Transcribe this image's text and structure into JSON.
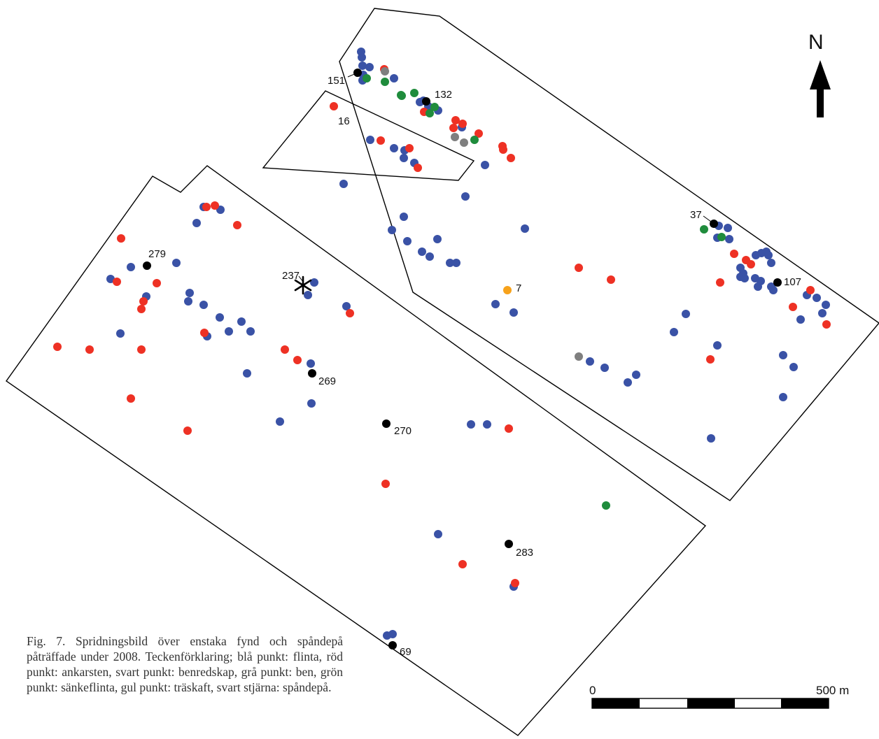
{
  "colors": {
    "flinta": "#3a52a6",
    "ankarsten": "#ee3124",
    "benredskap": "#000000",
    "ben": "#7f7f7f",
    "sankeflinta": "#1f8c3c",
    "traskaft": "#f7a21b"
  },
  "north_label": "N",
  "scale": {
    "start_label": "0",
    "end_label": "500 m"
  },
  "caption": "Fig. 7. Spridningsbild över enstaka fynd och spåndepå påträffade under 2008. Teckenförklaring; blå punkt: flinta, röd punkt: ankarsten, svart punkt: benredskap, grå punkt: ben, grön punkt: sänkeflinta, gul punkt: träskaft, svart stjärna: spåndepå.",
  "labeled_finds": [
    {
      "id": "151",
      "type": "benredskap"
    },
    {
      "id": "132",
      "type": "benredskap"
    },
    {
      "id": "16",
      "type": "ankarsten"
    },
    {
      "id": "37",
      "type": "benredskap"
    },
    {
      "id": "107",
      "type": "benredskap"
    },
    {
      "id": "279",
      "type": "benredskap"
    },
    {
      "id": "237",
      "type": "spandepa"
    },
    {
      "id": "7",
      "type": "traskaft"
    },
    {
      "id": "269",
      "type": "benredskap"
    },
    {
      "id": "270",
      "type": "benredskap"
    },
    {
      "id": "283",
      "type": "benredskap"
    },
    {
      "id": "69",
      "type": "benredskap"
    }
  ]
}
